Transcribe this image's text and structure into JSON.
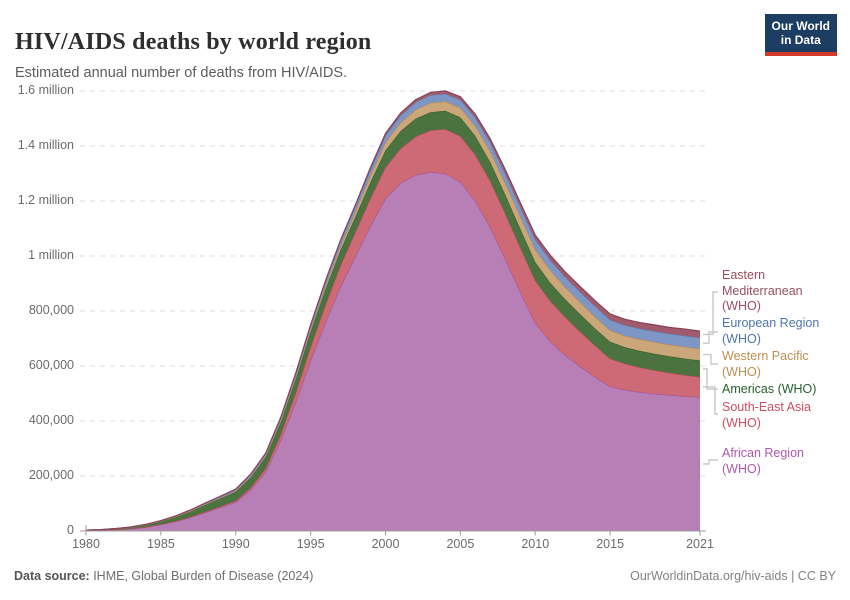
{
  "header": {
    "title": "HIV/AIDS deaths by world region",
    "subtitle": "Estimated annual number of deaths from HIV/AIDS.",
    "logo": {
      "line1": "Our World",
      "line2": "in Data",
      "bg": "#1d3d63",
      "accent": "#d33a2b"
    }
  },
  "footer": {
    "source_label": "Data source:",
    "source_text": " IHME, Global Burden of Disease (2024)",
    "right_text": "OurWorldinData.org/hiv-aids | CC BY"
  },
  "legend": {
    "items": [
      {
        "id": "emed",
        "label": "Eastern Mediterranean (WHO)",
        "color": "#9a4e62"
      },
      {
        "id": "euro",
        "label": "European Region (WHO)",
        "color": "#4f74b0"
      },
      {
        "id": "wpac",
        "label": "Western Pacific (WHO)",
        "color": "#bd8e51"
      },
      {
        "id": "americas",
        "label": "Americas (WHO)",
        "color": "#25612b"
      },
      {
        "id": "sea",
        "label": "South-East Asia (WHO)",
        "color": "#cc4e60"
      },
      {
        "id": "african",
        "label": "African Region (WHO)",
        "color": "#ad58ad"
      }
    ]
  },
  "chart_data": {
    "type": "area",
    "stacked": true,
    "title": "HIV/AIDS deaths by world region",
    "subtitle": "Estimated annual number of deaths from HIV/AIDS.",
    "xlabel": "",
    "ylabel": "",
    "grid": "horizontal dashed",
    "legend_position": "right",
    "ylim": [
      0,
      1600000
    ],
    "ytick_values": [
      0,
      200000,
      400000,
      600000,
      800000,
      1000000,
      1200000,
      1400000,
      1600000
    ],
    "ytick_labels": [
      "0",
      "200,000",
      "400,000",
      "600,000",
      "800,000",
      "1 million",
      "1.2 million",
      "1.4 million",
      "1.6 million"
    ],
    "xtick_values": [
      1980,
      1985,
      1990,
      1995,
      2000,
      2005,
      2010,
      2015,
      2021
    ],
    "x": [
      1980,
      1981,
      1982,
      1983,
      1984,
      1985,
      1986,
      1987,
      1988,
      1989,
      1990,
      1991,
      1992,
      1993,
      1994,
      1995,
      1996,
      1997,
      1998,
      1999,
      2000,
      2001,
      2002,
      2003,
      2004,
      2005,
      2006,
      2007,
      2008,
      2009,
      2010,
      2011,
      2012,
      2013,
      2014,
      2015,
      2016,
      2017,
      2018,
      2019,
      2020,
      2021
    ],
    "series": [
      {
        "id": "african",
        "name": "African Region (WHO)",
        "fill": "#b77fb5",
        "line": "#a2559c",
        "values": [
          2000,
          3000,
          5000,
          8000,
          14000,
          24000,
          35000,
          50000,
          68000,
          86000,
          105000,
          150000,
          215000,
          330000,
          470000,
          620000,
          760000,
          890000,
          1000000,
          1110000,
          1210000,
          1265000,
          1295000,
          1305000,
          1300000,
          1270000,
          1200000,
          1105000,
          990000,
          870000,
          756000,
          690000,
          640000,
          598000,
          560000,
          525000,
          513000,
          505000,
          499000,
          494000,
          490000,
          487000
        ]
      },
      {
        "id": "sea",
        "name": "South-East Asia (WHO)",
        "fill": "#cd6a76",
        "line": "#c04a5b",
        "values": [
          100,
          100,
          200,
          300,
          500,
          800,
          1200,
          2000,
          3000,
          4000,
          5000,
          8000,
          13000,
          21000,
          33000,
          50000,
          64000,
          77000,
          89000,
          101000,
          113000,
          126000,
          139000,
          152000,
          161000,
          166000,
          168000,
          168000,
          165000,
          161000,
          155000,
          147000,
          138000,
          127000,
          114000,
          102000,
          95000,
          90000,
          85000,
          81000,
          77000,
          73000
        ]
      },
      {
        "id": "americas",
        "name": "Americas (WHO)",
        "fill": "#4a7340",
        "line": "#3a612f",
        "values": [
          700,
          1500,
          3000,
          5000,
          8000,
          11000,
          16000,
          21000,
          26000,
          30000,
          34000,
          38000,
          42000,
          46000,
          50000,
          54000,
          56000,
          55000,
          56000,
          58000,
          61000,
          63000,
          65000,
          66000,
          67000,
          68000,
          68000,
          68000,
          68000,
          68000,
          67000,
          66000,
          64000,
          63000,
          62000,
          61000,
          60000,
          60000,
          60000,
          60000,
          60000,
          60000
        ]
      },
      {
        "id": "wpac",
        "name": "Western Pacific (WHO)",
        "fill": "#cba678",
        "line": "#b98b50",
        "values": [
          100,
          100,
          100,
          200,
          200,
          300,
          400,
          600,
          800,
          1100,
          1500,
          2000,
          2600,
          3500,
          5000,
          7000,
          10000,
          14000,
          18000,
          24000,
          29000,
          31000,
          33000,
          34000,
          34000,
          35000,
          37000,
          40000,
          43000,
          45000,
          46000,
          46000,
          45000,
          44000,
          43000,
          42000,
          42000,
          42000,
          43000,
          43000,
          43000,
          43000
        ]
      },
      {
        "id": "euro",
        "name": "European Region (WHO)",
        "fill": "#7e96c6",
        "line": "#6080b2",
        "values": [
          200,
          400,
          700,
          1000,
          1200,
          1500,
          2200,
          3000,
          4000,
          5000,
          6000,
          7500,
          9000,
          10500,
          13000,
          15000,
          17000,
          18000,
          19000,
          22000,
          25000,
          26000,
          27000,
          28000,
          28000,
          29000,
          30000,
          32000,
          34000,
          35000,
          36000,
          37000,
          37000,
          38000,
          38000,
          38000,
          38000,
          39000,
          39000,
          39000,
          40000,
          40000
        ]
      },
      {
        "id": "emed",
        "name": "Eastern Mediterranean (WHO)",
        "fill": "#a05b6d",
        "line": "#8c4156",
        "values": [
          50,
          50,
          100,
          100,
          200,
          300,
          400,
          500,
          700,
          800,
          1000,
          1300,
          1700,
          2200,
          3000,
          4000,
          4500,
          5000,
          6000,
          7000,
          8000,
          8500,
          9000,
          10000,
          10500,
          11000,
          12000,
          13000,
          14000,
          15000,
          16000,
          17000,
          18000,
          19000,
          20000,
          21000,
          22000,
          22000,
          23000,
          23000,
          24000,
          24000
        ]
      }
    ]
  }
}
